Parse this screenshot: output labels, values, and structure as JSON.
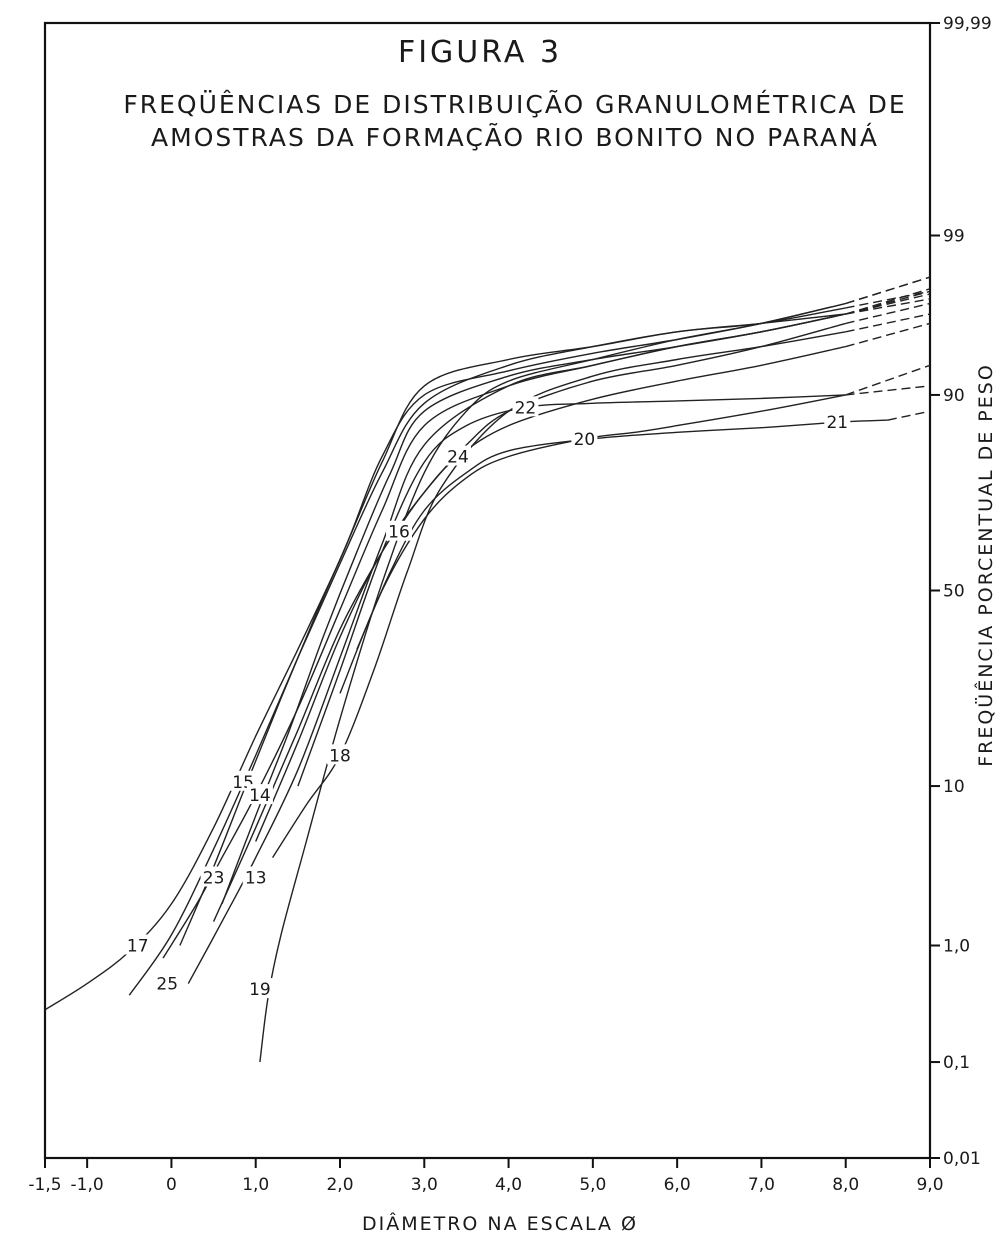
{
  "chart_data": {
    "type": "line",
    "title": "FIGURA 3",
    "subtitle_line1": "FREQÜÊNCIAS DE DISTRIBUIÇÃO GRANULOMÉTRICA DE",
    "subtitle_line2": "AMOSTRAS DA FORMAÇÃO RIO BONITO NO PARANÁ",
    "xlabel": "DIÂMETRO NA ESCALA Ø",
    "ylabel": "FREQÜÊNCIA PORCENTUAL DE PESO",
    "x_tick_labels": [
      "-1,5",
      "-1,0",
      "0",
      "1,0",
      "2,0",
      "3,0",
      "4,0",
      "5,0",
      "6,0",
      "7,0",
      "8,0",
      "9,0"
    ],
    "x_tick_values": [
      -1.5,
      -1.0,
      0,
      1.0,
      2.0,
      3.0,
      4.0,
      5.0,
      6.0,
      7.0,
      8.0,
      9.0
    ],
    "y_tick_labels": [
      "0,01",
      "0,1",
      "1,0",
      "10",
      "50",
      "90",
      "99",
      "99,99"
    ],
    "y_tick_values": [
      0.01,
      0.1,
      1.0,
      10,
      50,
      90,
      99,
      99.99
    ],
    "xlim": [
      -1.5,
      9.0
    ],
    "ylim": [
      0.01,
      99.99
    ],
    "y_scale": "probability",
    "grid": false,
    "legend": "none",
    "series": [
      {
        "name": "17",
        "label_at": [
          -0.4,
          1.0
        ],
        "x": [
          -1.5,
          -1.0,
          -0.5,
          0,
          0.5,
          1.0,
          1.5,
          2.0,
          2.5,
          3.0,
          4.0,
          5.0,
          6.0,
          7.0,
          8.0,
          9.0
        ],
        "y": [
          0.3,
          0.5,
          0.9,
          2.0,
          6.0,
          17,
          35,
          58,
          80,
          91,
          93.5,
          94.5,
          95.5,
          96,
          96.5,
          97.5
        ]
      },
      {
        "name": "25",
        "label_at": [
          -0.05,
          0.5
        ],
        "x": [
          -0.5,
          0,
          0.5,
          1.0,
          1.5,
          2.0,
          2.5,
          3.0,
          4.0,
          5.0,
          6.0,
          7.0,
          8.0,
          9.0
        ],
        "y": [
          0.4,
          1.2,
          4.5,
          14,
          33,
          57,
          78,
          89,
          93,
          94.5,
          95.5,
          96,
          96.8,
          97.5
        ]
      },
      {
        "name": "23",
        "label_at": [
          0.5,
          3.0
        ],
        "x": [
          -0.1,
          0.3,
          0.6,
          1.0,
          1.5,
          2.0,
          2.5,
          3.0,
          4.0,
          5.0,
          6.0,
          7.0,
          8.0,
          9.0
        ],
        "y": [
          0.8,
          2.0,
          4.0,
          9,
          22,
          45,
          70,
          86,
          91,
          93,
          94.5,
          95.5,
          96.5,
          97.2
        ]
      },
      {
        "name": "13",
        "label_at": [
          1.0,
          3.0
        ],
        "x": [
          0.2,
          0.6,
          1.0,
          1.5,
          2.0,
          2.5,
          3.0,
          4.0,
          5.0,
          6.0,
          7.0,
          8.0,
          9.0
        ],
        "y": [
          0.5,
          1.5,
          4.0,
          12,
          33,
          62,
          83,
          91,
          93,
          94.5,
          95.5,
          96.5,
          97.4
        ]
      },
      {
        "name": "15",
        "label_at": [
          0.85,
          10.5
        ],
        "x": [
          0.1,
          0.5,
          0.9,
          1.3,
          1.7,
          2.1,
          2.5,
          3.0,
          4.0,
          5.0,
          6.0,
          7.0,
          8.0,
          9.0
        ],
        "y": [
          1.0,
          3.5,
          10.5,
          24,
          43,
          63,
          81,
          90,
          92.5,
          94,
          95,
          96,
          97,
          98
        ]
      },
      {
        "name": "14",
        "label_at": [
          1.05,
          9.0
        ],
        "x": [
          0.6,
          1.0,
          1.4,
          1.8,
          2.2,
          2.6,
          3.0,
          4.0,
          5.0,
          6.0,
          7.0,
          8.0,
          9.0
        ],
        "y": [
          2.0,
          7.0,
          18,
          38,
          60,
          78,
          88,
          92,
          93.5,
          94.5,
          95.5,
          96.5,
          97.6
        ]
      },
      {
        "name": "19",
        "label_at": [
          1.05,
          0.45
        ],
        "x": [
          1.05,
          1.15,
          1.3,
          1.6,
          2.0,
          2.5,
          3.0,
          3.5,
          4.0,
          5.0,
          6.0,
          7.0,
          8.0,
          9.0
        ],
        "y": [
          0.1,
          0.4,
          1.2,
          5.0,
          20,
          52,
          78,
          88,
          91.5,
          93.5,
          95,
          96,
          97,
          98
        ]
      },
      {
        "name": "18",
        "label_at": [
          2.0,
          14.0
        ],
        "x": [
          1.2,
          1.6,
          2.0,
          2.4,
          2.8,
          3.2,
          4.0,
          5.0,
          6.0,
          7.0,
          8.0,
          9.0
        ],
        "y": [
          4.0,
          8.0,
          14,
          30,
          55,
          75,
          88,
          92,
          93.5,
          94.5,
          95.5,
          96.5
        ]
      },
      {
        "name": "16",
        "label_at": [
          2.7,
          65.0
        ],
        "x": [
          0.5,
          1.0,
          1.5,
          2.0,
          2.5,
          2.7,
          3.0,
          3.5,
          4.0,
          5.0,
          6.0,
          7.0,
          8.0,
          9.0
        ],
        "y": [
          1.5,
          6.0,
          18,
          40,
          60,
          66,
          74,
          83,
          88,
          91.5,
          93,
          94.5,
          96,
          97
        ]
      },
      {
        "name": "24",
        "label_at": [
          3.4,
          81.0
        ],
        "x": [
          1.0,
          1.5,
          2.0,
          2.5,
          3.0,
          3.4,
          4.0,
          5.0,
          6.0,
          7.0,
          8.0,
          9.0
        ],
        "y": [
          5.0,
          16,
          38,
          60,
          74,
          81,
          86,
          89.5,
          91.5,
          93,
          94.5,
          96
        ]
      },
      {
        "name": "22",
        "label_at": [
          4.2,
          88.5
        ],
        "x": [
          1.5,
          2.0,
          2.5,
          3.0,
          3.5,
          4.2,
          5.0,
          6.0,
          7.0,
          8.0,
          9.0
        ],
        "y": [
          10,
          30,
          60,
          80,
          86,
          88.5,
          89,
          89.3,
          89.6,
          90,
          91
        ]
      },
      {
        "name": "20",
        "label_at": [
          4.9,
          84.0
        ],
        "x": [
          2.0,
          2.5,
          3.0,
          3.5,
          4.0,
          4.9,
          5.5,
          6.0,
          7.0,
          8.0,
          9.0
        ],
        "y": [
          25,
          50,
          68,
          77,
          81,
          84,
          85,
          86,
          88,
          90,
          93
        ]
      },
      {
        "name": "21",
        "label_at": [
          7.9,
          86.5
        ],
        "x": [
          2.2,
          2.6,
          3.0,
          3.5,
          4.0,
          5.0,
          6.0,
          7.0,
          7.9,
          8.5,
          9.0
        ],
        "y": [
          35,
          55,
          70,
          78,
          82,
          84,
          85,
          85.7,
          86.5,
          86.8,
          88
        ]
      }
    ]
  }
}
